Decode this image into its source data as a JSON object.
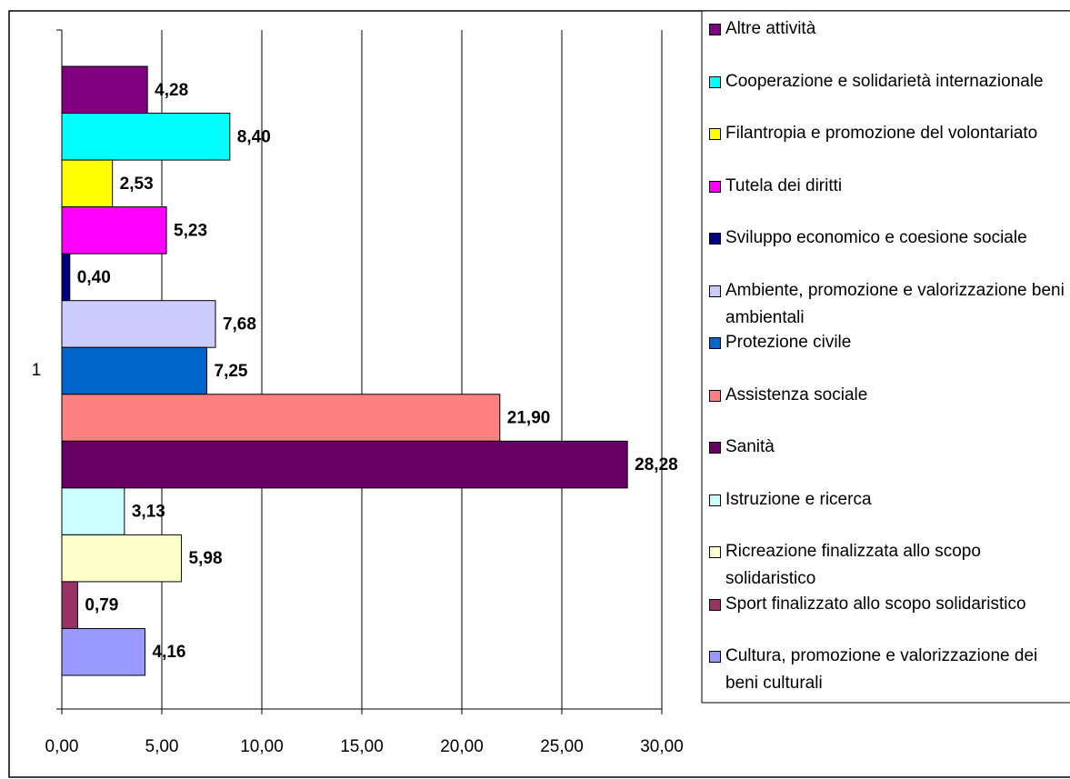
{
  "chart_data": {
    "type": "hbar_grouped",
    "categories": [
      "1"
    ],
    "series": [
      {
        "name": "Altre attività",
        "color": "#800080",
        "values": [
          4.28
        ],
        "value_labels": [
          "4,28"
        ]
      },
      {
        "name": "Cooperazione e solidarietà internazionale",
        "color": "#00FFFF",
        "values": [
          8.4
        ],
        "value_labels": [
          "8,40"
        ]
      },
      {
        "name": "Filantropia e promozione del volontariato",
        "color": "#FFFF00",
        "values": [
          2.53
        ],
        "value_labels": [
          "2,53"
        ]
      },
      {
        "name": "Tutela dei diritti",
        "color": "#FF00FF",
        "values": [
          5.23
        ],
        "value_labels": [
          "5,23"
        ]
      },
      {
        "name": "Sviluppo economico e coesione sociale",
        "color": "#000080",
        "values": [
          0.4
        ],
        "value_labels": [
          "0,40"
        ]
      },
      {
        "name": "Ambiente, promozione e valorizzazione beni ambientali",
        "color": "#CCCCFF",
        "values": [
          7.68
        ],
        "value_labels": [
          "7,68"
        ]
      },
      {
        "name": "Protezione civile",
        "color": "#0066CC",
        "values": [
          7.25
        ],
        "value_labels": [
          "7,25"
        ]
      },
      {
        "name": "Assistenza sociale",
        "color": "#FF8080",
        "values": [
          21.9
        ],
        "value_labels": [
          "21,90"
        ]
      },
      {
        "name": "Sanità",
        "color": "#660066",
        "values": [
          28.28
        ],
        "value_labels": [
          "28,28"
        ]
      },
      {
        "name": "Istruzione e ricerca",
        "color": "#CCFFFF",
        "values": [
          3.13
        ],
        "value_labels": [
          "3,13"
        ]
      },
      {
        "name": "Ricreazione finalizzata allo scopo solidaristico",
        "color": "#FFFFCC",
        "values": [
          5.98
        ],
        "value_labels": [
          "5,98"
        ]
      },
      {
        "name": "Sport finalizzato allo scopo solidaristico",
        "color": "#993366",
        "values": [
          0.79
        ],
        "value_labels": [
          "0,79"
        ]
      },
      {
        "name": "Cultura, promozione e valorizzazione dei beni culturali",
        "color": "#9999FF",
        "values": [
          4.16
        ],
        "value_labels": [
          "4,16"
        ]
      }
    ],
    "xlim": [
      0,
      30
    ],
    "xticks": [
      {
        "value": 0,
        "label": "0,00"
      },
      {
        "value": 5,
        "label": "5,00"
      },
      {
        "value": 10,
        "label": "10,00"
      },
      {
        "value": 15,
        "label": "15,00"
      },
      {
        "value": 20,
        "label": "20,00"
      },
      {
        "value": 25,
        "label": "25,00"
      },
      {
        "value": 30,
        "label": "30,00"
      }
    ],
    "grid": true,
    "legend": "right"
  }
}
